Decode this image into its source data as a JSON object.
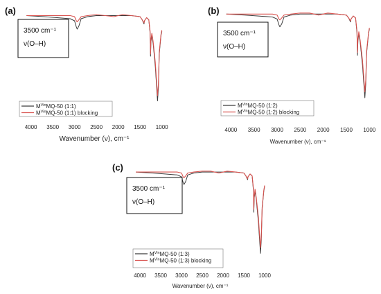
{
  "chart_data": [
    {
      "type": "line",
      "panel_label": "(a)",
      "xlabel": "Wavenumber (ν), cm⁻¹",
      "x_ticks": [
        4000,
        3500,
        3000,
        2500,
        2000,
        1500,
        1000
      ],
      "xlim": [
        4200,
        900
      ],
      "annotation": [
        "3500 cm⁻¹",
        "ν(O–H)"
      ],
      "legend_position": "bottom-left",
      "series": [
        {
          "name": "MVinMQ-50 (1:1)",
          "color": "#3a3a3a",
          "x": [
            4100,
            3700,
            3400,
            3100,
            3000,
            2960,
            2940,
            2900,
            2850,
            2700,
            2500,
            2300,
            2100,
            1900,
            1700,
            1500,
            1450,
            1410,
            1400,
            1350,
            1300,
            1270,
            1260,
            1250,
            1230,
            1200,
            1150,
            1100,
            1080,
            1060,
            1020,
            1000
          ],
          "y": [
            97,
            96,
            95,
            94,
            92,
            86,
            84,
            87,
            94,
            96,
            97,
            97,
            97,
            97,
            97,
            96,
            93,
            89,
            92,
            95,
            93,
            80,
            58,
            72,
            78,
            70,
            48,
            15,
            28,
            60,
            78,
            82
          ]
        },
        {
          "name": "MVinMQ-50 (1:1) blocking",
          "color": "#d9534f",
          "x": [
            4100,
            3700,
            3400,
            3100,
            3000,
            2960,
            2940,
            2900,
            2850,
            2700,
            2500,
            2300,
            2100,
            1900,
            1700,
            1500,
            1450,
            1410,
            1400,
            1350,
            1300,
            1270,
            1260,
            1250,
            1230,
            1200,
            1150,
            1100,
            1080,
            1060,
            1020,
            1000
          ],
          "y": [
            97,
            97,
            97,
            97,
            96,
            92,
            91,
            93,
            96,
            97,
            98,
            97,
            96,
            98,
            97,
            96,
            93,
            90,
            92,
            95,
            93,
            82,
            60,
            74,
            80,
            72,
            52,
            20,
            32,
            62,
            79,
            83
          ]
        }
      ]
    },
    {
      "type": "line",
      "panel_label": "(b)",
      "xlabel": "Wavenumber (ν), cm⁻¹",
      "x_ticks": [
        4000,
        3500,
        3000,
        2500,
        2000,
        1500,
        1000
      ],
      "xlim": [
        4200,
        900
      ],
      "annotation": [
        "3500 cm⁻¹",
        "ν(O–H)"
      ],
      "legend_position": "bottom-left",
      "series": [
        {
          "name": "MVinMQ-50 (1:2)",
          "color": "#3a3a3a",
          "x": [
            4100,
            3700,
            3400,
            3100,
            3000,
            2960,
            2940,
            2900,
            2850,
            2700,
            2500,
            2300,
            2100,
            1900,
            1700,
            1500,
            1450,
            1410,
            1400,
            1350,
            1300,
            1270,
            1260,
            1250,
            1230,
            1200,
            1150,
            1100,
            1080,
            1060,
            1020,
            1000
          ],
          "y": [
            97,
            96,
            95,
            94,
            92,
            86,
            84,
            87,
            94,
            96,
            97,
            97,
            97,
            97,
            97,
            96,
            93,
            89,
            92,
            95,
            93,
            78,
            55,
            70,
            77,
            68,
            45,
            12,
            26,
            58,
            77,
            82
          ]
        },
        {
          "name": "MVinMQ-50 (1:2) blocking",
          "color": "#d9534f",
          "x": [
            4100,
            3700,
            3400,
            3100,
            3000,
            2960,
            2940,
            2900,
            2850,
            2700,
            2500,
            2300,
            2100,
            1900,
            1700,
            1500,
            1450,
            1410,
            1400,
            1350,
            1300,
            1270,
            1260,
            1250,
            1230,
            1200,
            1150,
            1100,
            1080,
            1060,
            1020,
            1000
          ],
          "y": [
            97,
            97,
            97,
            97,
            96,
            92,
            91,
            93,
            96,
            97,
            98,
            98,
            96,
            98,
            97,
            96,
            93,
            90,
            92,
            95,
            93,
            80,
            58,
            72,
            79,
            70,
            50,
            18,
            30,
            60,
            78,
            83
          ]
        }
      ]
    },
    {
      "type": "line",
      "panel_label": "(c)",
      "xlabel": "Wavenumber (ν), cm⁻¹",
      "x_ticks": [
        4000,
        3500,
        3000,
        2500,
        2000,
        1500,
        1000
      ],
      "xlim": [
        4200,
        900
      ],
      "annotation": [
        "3500 cm⁻¹",
        "ν(O–H)"
      ],
      "legend_position": "bottom-left",
      "series": [
        {
          "name": "MVinMQ-50 (1:3)",
          "color": "#3a3a3a",
          "x": [
            4100,
            3700,
            3400,
            3100,
            3000,
            2960,
            2940,
            2900,
            2850,
            2700,
            2500,
            2300,
            2100,
            1900,
            1700,
            1500,
            1450,
            1410,
            1400,
            1350,
            1300,
            1270,
            1260,
            1250,
            1230,
            1200,
            1150,
            1100,
            1080,
            1060,
            1020,
            1000
          ],
          "y": [
            97,
            96,
            95,
            94,
            92,
            86,
            84,
            87,
            94,
            96,
            97,
            97,
            97,
            97,
            97,
            96,
            93,
            89,
            92,
            95,
            93,
            78,
            55,
            70,
            77,
            68,
            45,
            12,
            26,
            58,
            77,
            82
          ]
        },
        {
          "name": "MVinMQ-50 (1:3) blocking",
          "color": "#d9534f",
          "x": [
            4100,
            3700,
            3400,
            3100,
            3000,
            2960,
            2940,
            2900,
            2850,
            2700,
            2500,
            2300,
            2100,
            1900,
            1700,
            1500,
            1450,
            1410,
            1400,
            1350,
            1300,
            1270,
            1260,
            1250,
            1230,
            1200,
            1150,
            1100,
            1080,
            1060,
            1020,
            1000
          ],
          "y": [
            97,
            97,
            97,
            97,
            96,
            92,
            91,
            93,
            96,
            97,
            98,
            98,
            96,
            98,
            97,
            96,
            93,
            90,
            92,
            95,
            93,
            80,
            58,
            72,
            79,
            70,
            50,
            18,
            30,
            60,
            78,
            83
          ]
        }
      ]
    }
  ]
}
